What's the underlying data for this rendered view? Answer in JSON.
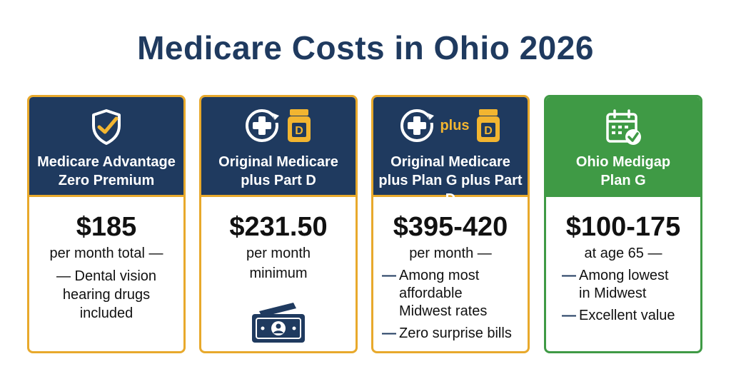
{
  "title": "Medicare Costs in Ohio 2026",
  "colors": {
    "navy": "#1f3a5f",
    "gold": "#e8a92c",
    "green": "#3f9a45"
  },
  "cards": [
    {
      "icon": "shield-check-icon",
      "title_line1": "Medicare Advantage",
      "title_line2": "Zero Premium",
      "price": "$185",
      "sub1": "per month total —",
      "sub2": "",
      "bullets": [
        "— Dental vision hearing drugs included"
      ],
      "bullet_lines": [
        "— Dental vision",
        "hearing drugs",
        "included"
      ]
    },
    {
      "icon": "medical-plus-and-pill-bottle-icon",
      "title_line1": "Original Medicare",
      "title_line2": "plus Part D",
      "price": "$231.50",
      "sub1": "per month",
      "sub2": "minimum",
      "bullets": [],
      "money_icon": "banknote-icon"
    },
    {
      "icon": "medical-plus-and-pill-bottle-icon",
      "icon_word": "plus",
      "pill_letter": "D",
      "title_line1": "Original Medicare",
      "title_line2": "plus Plan G plus Part D",
      "price": "$395-420",
      "sub1": "per month —",
      "bullets": [
        "Among most affordable Midwest rates",
        "Zero surprise bills"
      ],
      "bullet_lines_a": [
        "Among most",
        "affordable",
        "Midwest rates"
      ],
      "dash": "—"
    },
    {
      "icon": "calendar-check-icon",
      "title_line1": "Ohio Medigap",
      "title_line2": "Plan G",
      "price": "$100-175",
      "sub1": "at age 65 —",
      "bullets": [
        "Among lowest in Midwest",
        "Excellent value"
      ],
      "bullet_lines_a": [
        "Among lowest",
        "in Midwest"
      ],
      "dash": "—"
    }
  ]
}
